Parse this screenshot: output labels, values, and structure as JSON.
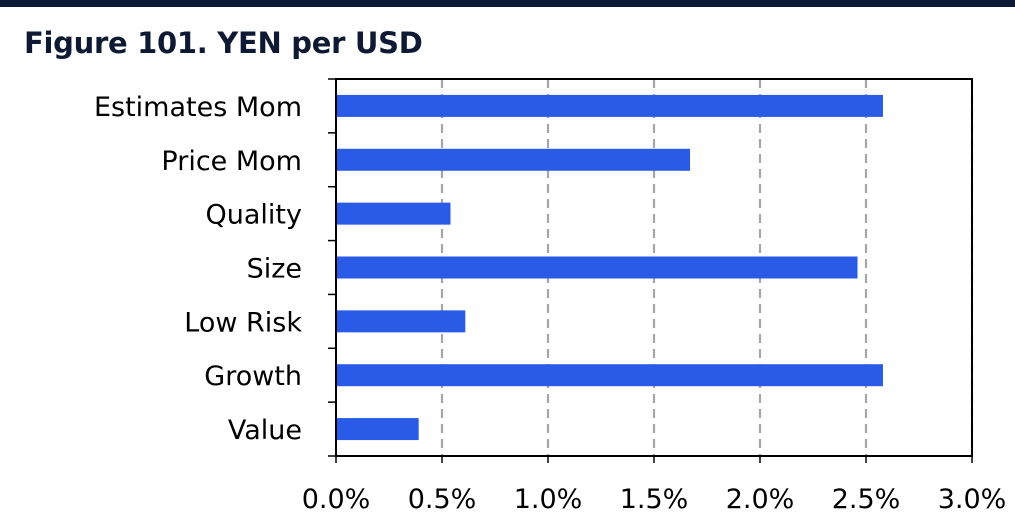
{
  "figure": {
    "title": "Figure 101. YEN per USD"
  },
  "colors": {
    "bar": "#2a5be6",
    "header_bar": "#0e1a33",
    "grid": "#a6a6a6",
    "axis": "#000000"
  },
  "chart_data": {
    "type": "bar",
    "orientation": "horizontal",
    "title": "Figure 101. YEN per USD",
    "categories": [
      "Estimates Mom",
      "Price Mom",
      "Quality",
      "Size",
      "Low Risk",
      "Growth",
      "Value"
    ],
    "values": [
      0.0258,
      0.0167,
      0.0054,
      0.0246,
      0.0061,
      0.0258,
      0.0039
    ],
    "xlim": [
      0,
      0.03
    ],
    "xticks": [
      0,
      0.005,
      0.01,
      0.015,
      0.02,
      0.025,
      0.03
    ],
    "xtick_labels": [
      "0.0%",
      "0.5%",
      "1.0%",
      "1.5%",
      "2.0%",
      "2.5%",
      "3.0%"
    ],
    "xlabel": "",
    "ylabel": "",
    "grid": "vertical dashed",
    "legend": "none"
  }
}
